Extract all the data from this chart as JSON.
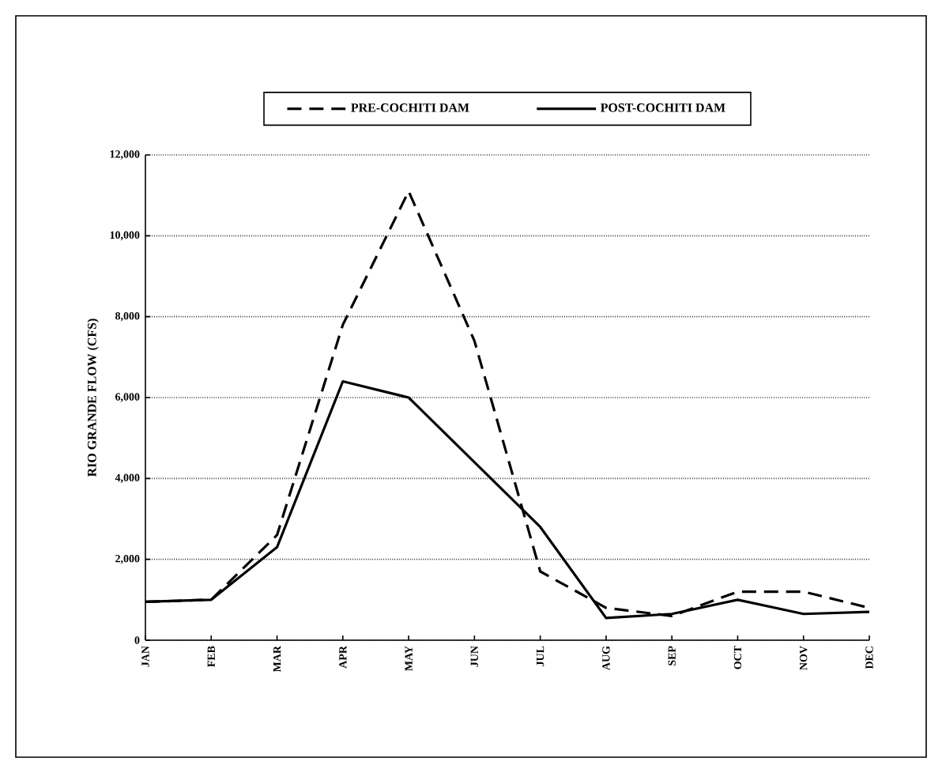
{
  "chart_data": {
    "type": "line",
    "ylabel": "RIO GRANDE FLOW (CFS)",
    "categories": [
      "JAN",
      "FEB",
      "MAR",
      "APR",
      "MAY",
      "JUN",
      "JUL",
      "AUG",
      "SEP",
      "OCT",
      "NOV",
      "DEC"
    ],
    "series": [
      {
        "name": "PRE-COCHITI DAM",
        "color": "#000000",
        "line_style": "dashed",
        "values": [
          950,
          1000,
          2600,
          7800,
          11100,
          7400,
          1700,
          800,
          600,
          1200,
          1200,
          800
        ]
      },
      {
        "name": "POST-COCHITI DAM",
        "color": "#000000",
        "line_style": "solid",
        "values": [
          950,
          1000,
          2300,
          6400,
          6000,
          4400,
          2800,
          550,
          650,
          1000,
          650,
          700
        ]
      }
    ],
    "ylim": [
      0,
      12000
    ],
    "yticks": [
      {
        "value": 0,
        "label": "0"
      },
      {
        "value": 2000,
        "label": "2,000"
      },
      {
        "value": 4000,
        "label": "4,000"
      },
      {
        "value": 6000,
        "label": "6,000"
      },
      {
        "value": 8000,
        "label": "8,000"
      },
      {
        "value": 10000,
        "label": "10,000"
      },
      {
        "value": 12000,
        "label": "12,000"
      }
    ],
    "grid": "y",
    "legend": "top",
    "marker": "none"
  }
}
